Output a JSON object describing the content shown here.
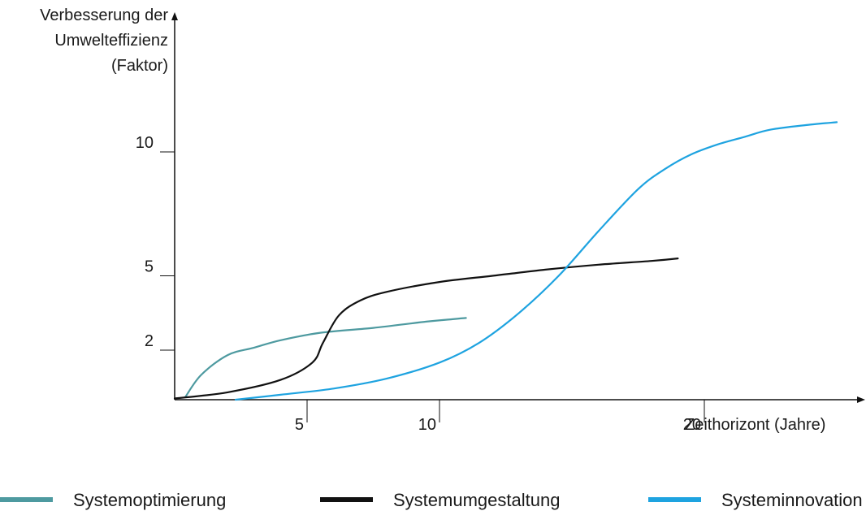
{
  "chart_data": {
    "type": "line",
    "ylabel_lines": [
      "Verbesserung der",
      "Umwelteffizienz",
      "(Faktor)"
    ],
    "xlabel": "Zeithorizont (Jahre)",
    "x_ticks": [
      {
        "value": 5,
        "label": "5"
      },
      {
        "value": 10,
        "label": "10"
      },
      {
        "value": 20,
        "label": "20"
      }
    ],
    "y_ticks": [
      {
        "value": 2,
        "label": "2"
      },
      {
        "value": 5,
        "label": "5"
      },
      {
        "value": 10,
        "label": "10"
      }
    ],
    "xlim": [
      0,
      26
    ],
    "ylim": [
      0,
      13.5
    ],
    "grid": false,
    "legend_position": "bottom",
    "series": [
      {
        "name": "Systemoptimierung",
        "color": "#4e9aa0",
        "points": [
          [
            0.4,
            0.1
          ],
          [
            1.0,
            1.0
          ],
          [
            2.0,
            1.8
          ],
          [
            3.0,
            2.1
          ],
          [
            4.0,
            2.4
          ],
          [
            5.5,
            2.7
          ],
          [
            7.5,
            2.9
          ],
          [
            9.5,
            3.15
          ],
          [
            10.5,
            3.25
          ],
          [
            11.0,
            3.3
          ]
        ]
      },
      {
        "name": "Systemumgestaltung",
        "color": "#111111",
        "points": [
          [
            0,
            0.05
          ],
          [
            2.0,
            0.3
          ],
          [
            4.0,
            0.8
          ],
          [
            5.2,
            1.5
          ],
          [
            5.6,
            2.3
          ],
          [
            6.2,
            3.4
          ],
          [
            7.0,
            4.0
          ],
          [
            8.0,
            4.35
          ],
          [
            10.0,
            4.75
          ],
          [
            12.0,
            5.0
          ],
          [
            14.0,
            5.25
          ],
          [
            16.0,
            5.45
          ],
          [
            18.0,
            5.6
          ],
          [
            19.0,
            5.7
          ]
        ]
      },
      {
        "name": "Systeminnovation",
        "color": "#1ea3e0",
        "points": [
          [
            2.3,
            0.0
          ],
          [
            4.0,
            0.2
          ],
          [
            6.0,
            0.45
          ],
          [
            8.0,
            0.85
          ],
          [
            10.0,
            1.5
          ],
          [
            11.5,
            2.3
          ],
          [
            13.0,
            3.5
          ],
          [
            14.5,
            5.0
          ],
          [
            16.0,
            6.8
          ],
          [
            17.5,
            8.5
          ],
          [
            18.5,
            9.3
          ],
          [
            19.5,
            9.9
          ],
          [
            20.5,
            10.3
          ],
          [
            21.5,
            10.6
          ],
          [
            22.5,
            10.9
          ],
          [
            24.0,
            11.1
          ],
          [
            25.0,
            11.2
          ]
        ]
      }
    ]
  }
}
